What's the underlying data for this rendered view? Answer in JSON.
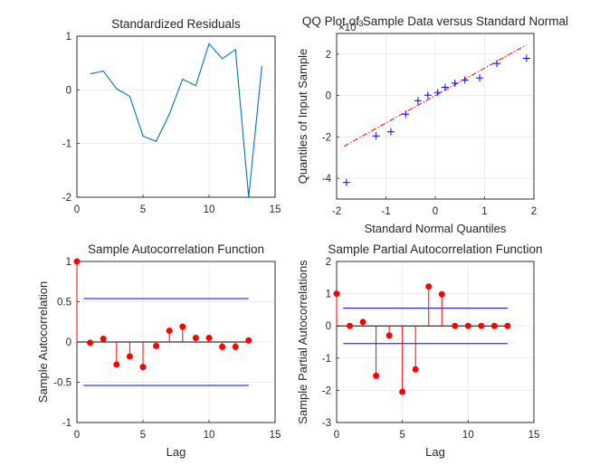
{
  "chart_data": [
    {
      "type": "line",
      "title": "Standardized Residuals",
      "xlabel": "",
      "ylabel": "",
      "xlim": [
        0,
        15
      ],
      "ylim": [
        -2,
        1
      ],
      "xticks": [
        "0",
        "5",
        "10",
        "15"
      ],
      "yticks": [
        "-2",
        "-1",
        "0",
        "1"
      ],
      "grid": true,
      "color": "#0072bd",
      "x": [
        1,
        2,
        3,
        4,
        5,
        6,
        7,
        8,
        9,
        10,
        11,
        12,
        13,
        14
      ],
      "y": [
        0.3,
        0.35,
        0.02,
        -0.12,
        -0.86,
        -0.96,
        -0.45,
        0.2,
        0.08,
        0.86,
        0.58,
        0.75,
        -2.0,
        0.45
      ]
    },
    {
      "type": "scatter",
      "title": "QQ Plot of Sample Data versus Standard Normal",
      "xlabel": "Standard Normal Quantiles",
      "ylabel": "Quantiles of Input Sample",
      "exponent_label": "×10",
      "exponent_sup": "-3",
      "xlim": [
        -2,
        2
      ],
      "ylim": [
        -5,
        3
      ],
      "xticks": [
        "-2",
        "-1",
        "0",
        "1",
        "2"
      ],
      "yticks": [
        "-4",
        "-2",
        "0",
        "2"
      ],
      "grid": true,
      "marker_color": "#0000ff",
      "line_color": "#ff0000",
      "x": [
        -1.8,
        -1.2,
        -0.9,
        -0.6,
        -0.35,
        -0.15,
        0.05,
        0.2,
        0.4,
        0.6,
        0.9,
        1.25,
        1.85
      ],
      "y": [
        -4.2,
        -1.95,
        -1.75,
        -0.9,
        -0.25,
        0.02,
        0.15,
        0.4,
        0.6,
        0.75,
        0.85,
        1.55,
        1.8
      ],
      "fit_line": {
        "x": [
          -1.85,
          1.85
        ],
        "y": [
          -2.45,
          2.45
        ]
      }
    },
    {
      "type": "stem",
      "title": "Sample Autocorrelation Function",
      "xlabel": "Lag",
      "ylabel": "Sample Autocorrelation",
      "xlim": [
        0,
        15
      ],
      "ylim": [
        -1,
        1
      ],
      "xticks": [
        "0",
        "5",
        "10",
        "15"
      ],
      "yticks": [
        "-1",
        "-0.5",
        "0",
        "0.5",
        "1"
      ],
      "grid": true,
      "stem_color": "#ff0000",
      "bound_color": "#0000ff",
      "x": [
        0,
        1,
        2,
        3,
        4,
        5,
        6,
        7,
        8,
        9,
        10,
        11,
        12,
        13
      ],
      "values": [
        1.0,
        -0.01,
        0.04,
        -0.28,
        -0.18,
        -0.31,
        -0.05,
        0.14,
        0.19,
        0.05,
        0.05,
        -0.06,
        -0.06,
        0.02
      ],
      "bounds": [
        0.54,
        -0.54
      ],
      "bounds_x": [
        0.5,
        13
      ]
    },
    {
      "type": "stem",
      "title": "Sample Partial Autocorrelation Function",
      "xlabel": "Lag",
      "ylabel": "Sample Partial Autocorrelations",
      "xlim": [
        0,
        15
      ],
      "ylim": [
        -3,
        2
      ],
      "xticks": [
        "0",
        "5",
        "10",
        "15"
      ],
      "yticks": [
        "-3",
        "-2",
        "-1",
        "0",
        "1",
        "2"
      ],
      "grid": true,
      "stem_color": "#ff0000",
      "bound_color": "#0000ff",
      "x": [
        0,
        1,
        2,
        3,
        4,
        5,
        6,
        7,
        8,
        9,
        10,
        11,
        12,
        13
      ],
      "values": [
        1.0,
        0.0,
        0.12,
        -1.55,
        -0.3,
        -2.05,
        -1.35,
        1.22,
        0.98,
        0.0,
        0.0,
        0.0,
        0.0,
        0.0
      ],
      "bounds": [
        0.55,
        -0.55
      ],
      "bounds_x": [
        0.5,
        13
      ]
    }
  ]
}
